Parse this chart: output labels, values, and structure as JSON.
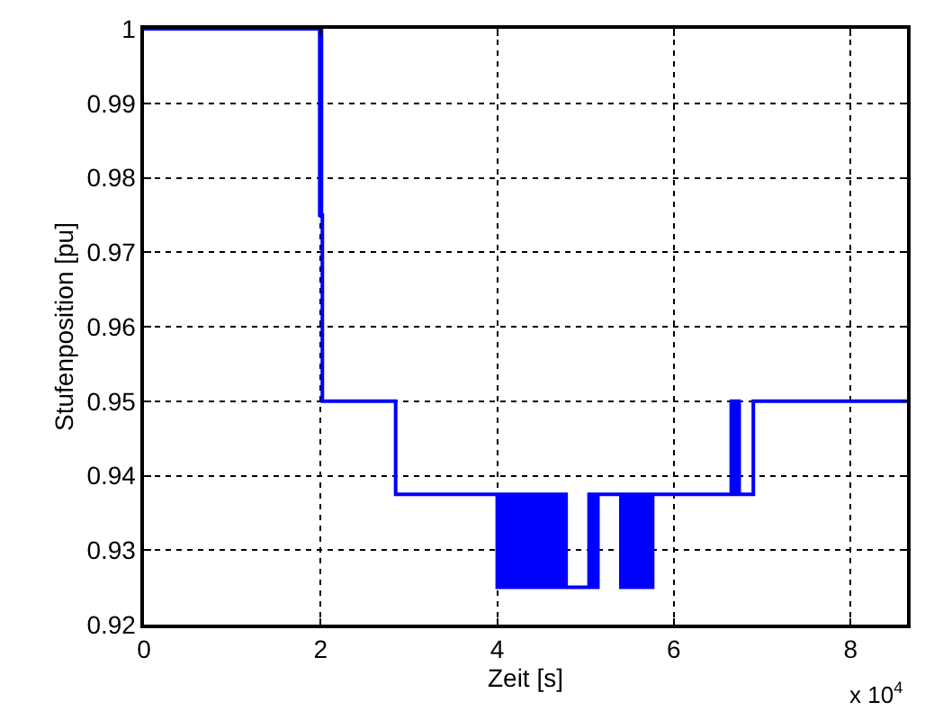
{
  "chart_data": {
    "type": "step",
    "xlabel": "Zeit [s]",
    "ylabel": "Stufenposition [pu]",
    "x": [
      0,
      1.99,
      2,
      2.01,
      2.02,
      2.85,
      4,
      4.03,
      4.05,
      4.08,
      4.1,
      4.14,
      4.16,
      4.2,
      4.22,
      4.25,
      4.27,
      4.31,
      4.33,
      4.36,
      4.38,
      4.42,
      4.44,
      4.47,
      4.49,
      4.53,
      4.55,
      4.58,
      4.6,
      4.64,
      4.66,
      4.7,
      4.74,
      4.76,
      4.78,
      5.04,
      5.06,
      5.09,
      5.11,
      5.14,
      5.4,
      5.43,
      5.45,
      5.48,
      5.5,
      5.54,
      5.56,
      5.59,
      5.61,
      5.65,
      5.67,
      5.7,
      5.72,
      5.76,
      5.8,
      6.65,
      6.67,
      6.68,
      6.7,
      6.72,
      6.74,
      6.9,
      8.64
    ],
    "series": [
      {
        "color": "#0000ff",
        "values": [
          1,
          0.975,
          1,
          0.975,
          0.95,
          0.9375,
          0.925,
          0.9375,
          0.925,
          0.9375,
          0.925,
          0.9375,
          0.925,
          0.9375,
          0.925,
          0.9375,
          0.925,
          0.9375,
          0.925,
          0.9375,
          0.925,
          0.9375,
          0.925,
          0.9375,
          0.925,
          0.9375,
          0.925,
          0.9375,
          0.925,
          0.9375,
          0.925,
          0.9375,
          0.925,
          0.9375,
          0.925,
          0.9375,
          0.925,
          0.9375,
          0.925,
          0.9375,
          0.925,
          0.9375,
          0.925,
          0.9375,
          0.925,
          0.9375,
          0.925,
          0.9375,
          0.925,
          0.9375,
          0.925,
          0.9375,
          0.925,
          0.9375,
          0.9375,
          0.95,
          0.9375,
          0.95,
          0.9375,
          0.95,
          0.9375,
          0.95,
          0.95
        ]
      }
    ],
    "xlim": [
      0,
      8.64
    ],
    "xticks": [
      0,
      2,
      4,
      6,
      8
    ],
    "ylim": [
      0.92,
      1
    ],
    "yticks": [
      0.92,
      0.93,
      0.94,
      0.95,
      0.96,
      0.97,
      0.98,
      0.99,
      1
    ],
    "grid": true,
    "line_style": "solid",
    "annotations": [
      "x 10$^{4}$"
    ]
  }
}
